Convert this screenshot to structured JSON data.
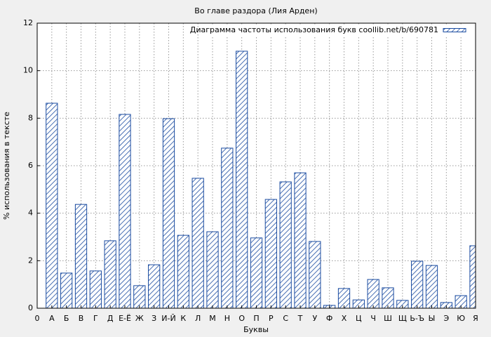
{
  "chart_data": {
    "type": "bar",
    "title": "Во главе раздора (Лия Арден)",
    "x_label": "Буквы",
    "y_label": "% использования в тексте",
    "x": [
      1,
      2,
      3,
      4,
      5,
      6,
      7,
      8,
      9,
      10,
      11,
      12,
      13,
      14,
      15,
      16,
      17,
      18,
      19,
      20,
      21,
      22,
      23,
      24,
      25,
      26,
      27,
      28,
      29,
      30
    ],
    "series": [
      {
        "name": "Диаграмма частоты использования букв coollib.net/b/690781",
        "color": "#1a4ba0",
        "values": [
          8.63,
          1.48,
          4.37,
          1.57,
          2.84,
          8.16,
          0.95,
          1.83,
          7.98,
          3.07,
          5.47,
          3.22,
          6.74,
          10.82,
          2.96,
          4.58,
          5.32,
          5.7,
          2.81,
          0.12,
          0.83,
          0.35,
          1.21,
          0.86,
          0.33,
          1.98,
          1.8,
          0.24,
          0.53,
          2.63
        ]
      }
    ],
    "xlim": [
      0,
      30
    ],
    "xticks": [
      0,
      {
        "value": 1,
        "label": "А"
      },
      {
        "value": 2,
        "label": "Б"
      },
      {
        "value": 3,
        "label": "В"
      },
      {
        "value": 4,
        "label": "Г"
      },
      {
        "value": 5,
        "label": "Д"
      },
      {
        "value": 6,
        "label": "Е-Ё"
      },
      {
        "value": 7,
        "label": "Ж"
      },
      {
        "value": 8,
        "label": "З"
      },
      {
        "value": 9,
        "label": "И-Й"
      },
      {
        "value": 10,
        "label": "К"
      },
      {
        "value": 11,
        "label": "Л"
      },
      {
        "value": 12,
        "label": "М"
      },
      {
        "value": 13,
        "label": "Н"
      },
      {
        "value": 14,
        "label": "О"
      },
      {
        "value": 15,
        "label": "П"
      },
      {
        "value": 16,
        "label": "Р"
      },
      {
        "value": 17,
        "label": "С"
      },
      {
        "value": 18,
        "label": "Т"
      },
      {
        "value": 19,
        "label": "У"
      },
      {
        "value": 20,
        "label": "Ф"
      },
      {
        "value": 21,
        "label": "Х"
      },
      {
        "value": 22,
        "label": "Ц"
      },
      {
        "value": 23,
        "label": "Ч"
      },
      {
        "value": 24,
        "label": "Ш"
      },
      {
        "value": 25,
        "label": "Щ"
      },
      {
        "value": 26,
        "label": "Ь-Ъ"
      },
      {
        "value": 27,
        "label": "Ы"
      },
      {
        "value": 28,
        "label": "Э"
      },
      {
        "value": 29,
        "label": "Ю"
      },
      {
        "value": 30,
        "label": "Я"
      }
    ],
    "ylim": [
      0,
      12
    ],
    "yticks": [
      0,
      2,
      4,
      6,
      8,
      10,
      12
    ],
    "grid": true,
    "legend": "upper right"
  }
}
